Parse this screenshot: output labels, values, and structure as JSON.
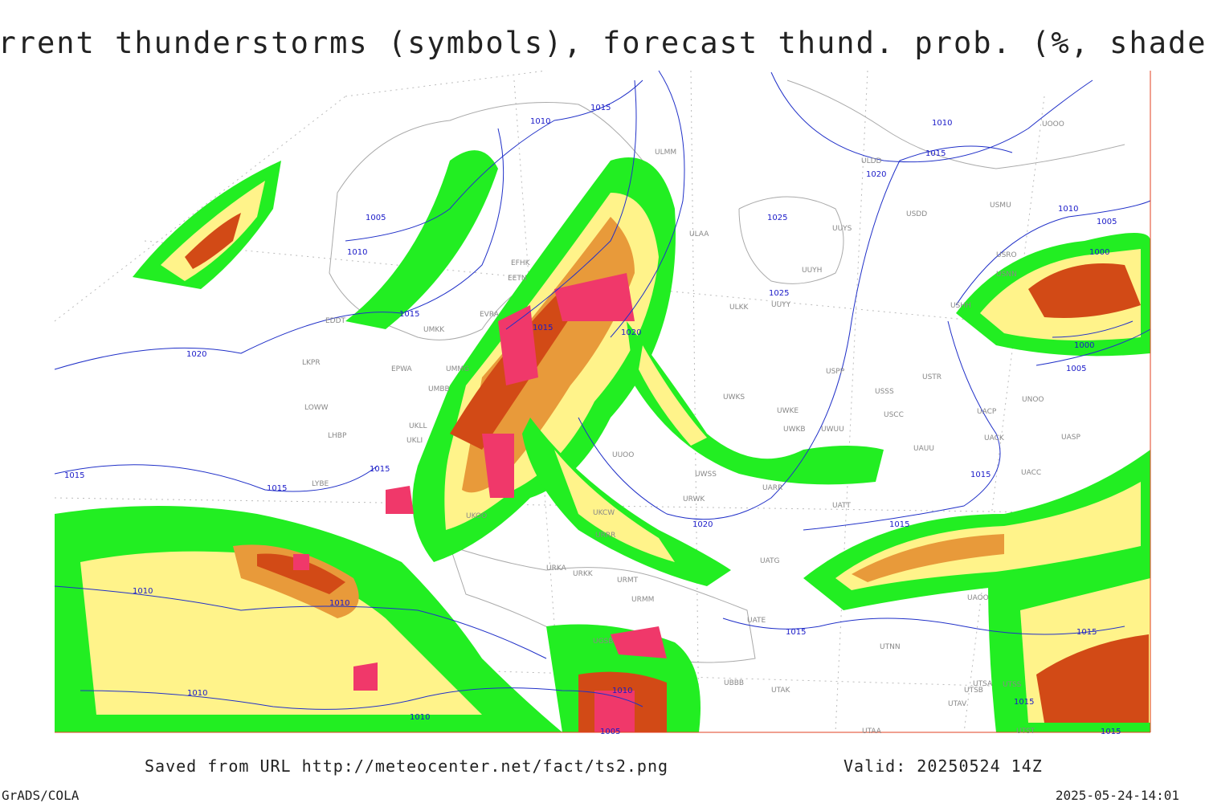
{
  "header": {
    "title": "Current thunderstorms (symbols), forecast thund. prob. (%, shaded)"
  },
  "footer": {
    "source": "Saved from URL http://meteocenter.net/fact/ts2.png",
    "valid": "Valid: 20250524 14Z",
    "software": "GrADS/COLA",
    "timestamp": "2025-05-24-14:01"
  },
  "map": {
    "isobar_labels": [
      "1015",
      "1010",
      "1005",
      "1010",
      "1015",
      "1020",
      "1015",
      "1020",
      "1025",
      "1025",
      "1020",
      "1015",
      "1010",
      "1010",
      "1005",
      "1000",
      "1000",
      "1005",
      "1015",
      "1015",
      "1015",
      "1015",
      "1020",
      "1015",
      "1010",
      "1010",
      "1015",
      "1015",
      "1010",
      "1010",
      "1010",
      "1005",
      "1015",
      "1015"
    ],
    "stations": [
      "ULMM",
      "ULDD",
      "USDD",
      "USMU",
      "ULAA",
      "UUYS",
      "EFHK",
      "EETN",
      "USRO",
      "USNN",
      "UUYH",
      "UUYY",
      "ULKK",
      "USHH",
      "EVRA",
      "EDDT",
      "UMKK",
      "LKPR",
      "EPWA",
      "UMMG",
      "UMBB",
      "USPP",
      "USSS",
      "USTR",
      "UNOO",
      "UWKS",
      "UWKE",
      "USCC",
      "UACP",
      "LOWW",
      "UKLL",
      "UKLI",
      "UWKB",
      "UWUU",
      "UACK",
      "UASP",
      "LHBP",
      "UAUU",
      "UUOO",
      "UWSS",
      "LYBE",
      "UACC",
      "UARR",
      "UATT",
      "UKOO",
      "URWK",
      "UKCW",
      "URRR",
      "UATG",
      "URKA",
      "URKK",
      "URMT",
      "UAOO",
      "URMM",
      "UATE",
      "UTNN",
      "UGSB",
      "UTAK",
      "UBBB",
      "UTSA",
      "UTSB",
      "UTSS",
      "UTAV",
      "UTAA",
      "UTST",
      "UOOO"
    ]
  }
}
